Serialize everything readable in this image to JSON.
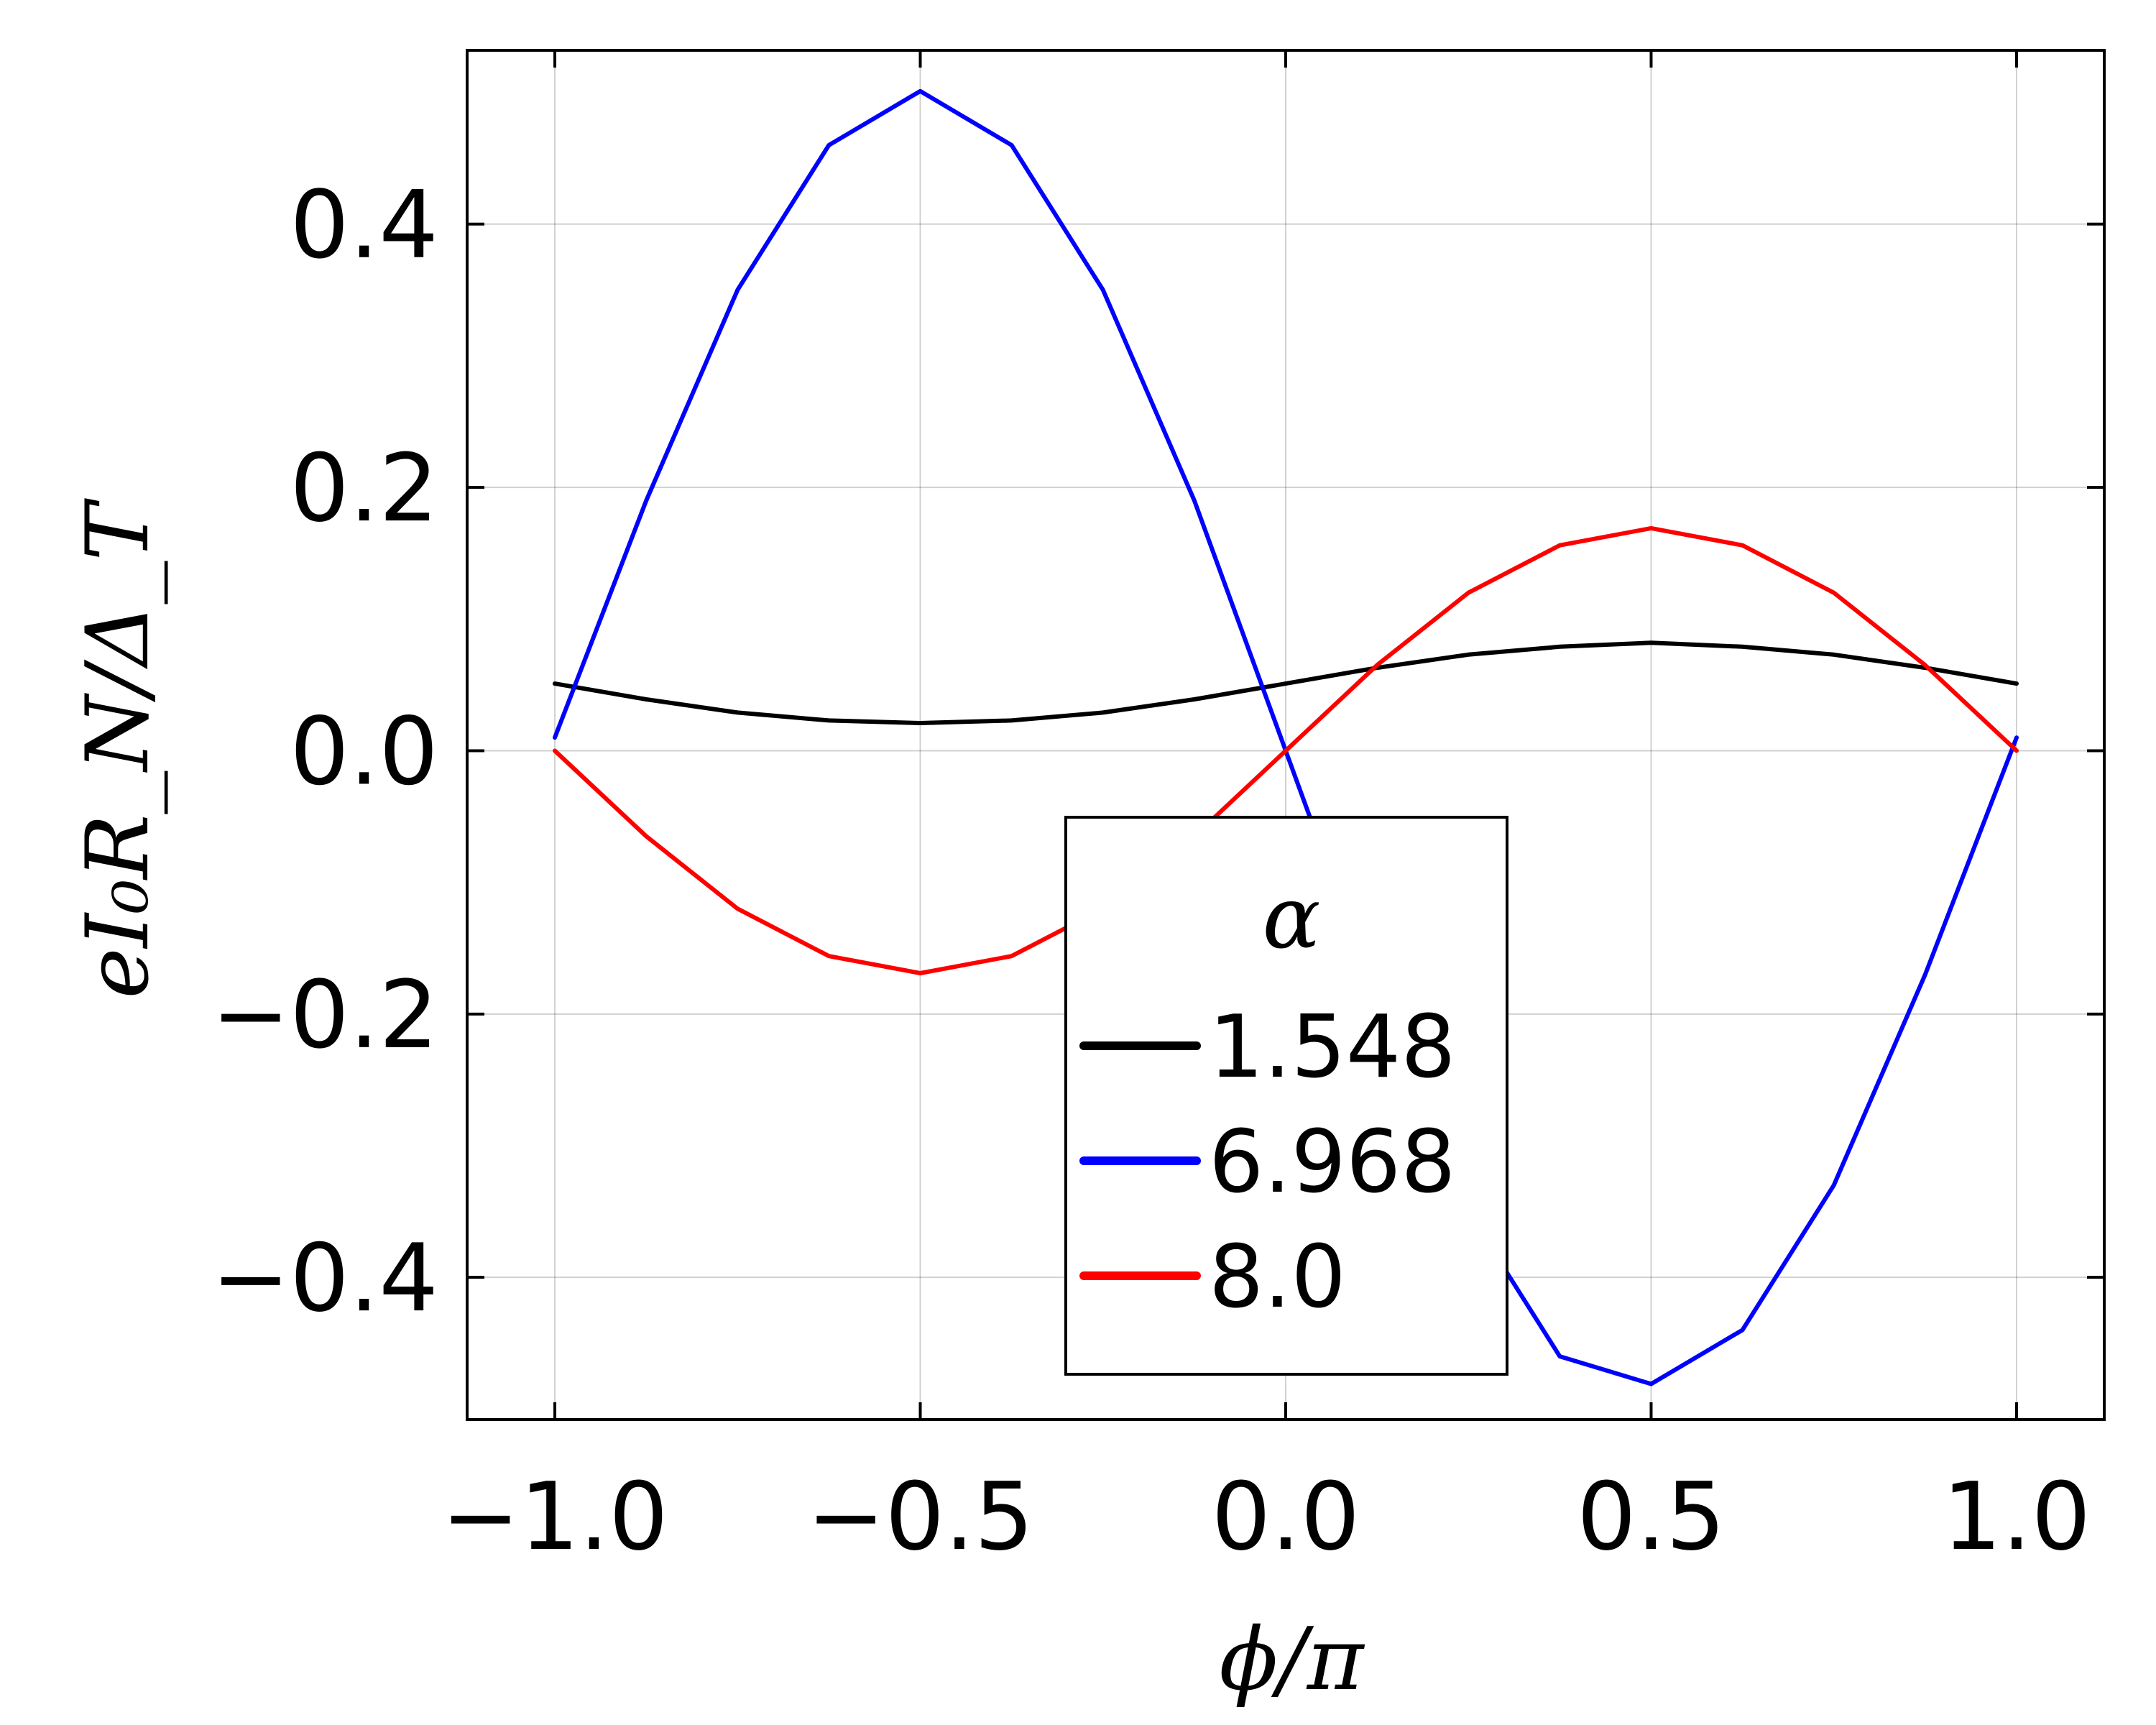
{
  "chart_data": {
    "type": "line",
    "xlabel": "ϕ/π",
    "ylabel": "eI₀R_N/Δ_T",
    "xlim": [
      -1.12,
      1.12
    ],
    "ylim": [
      -0.508,
      0.532
    ],
    "x_ticks": [
      -1.0,
      -0.5,
      0.0,
      0.5,
      1.0
    ],
    "x_tick_labels": [
      "−1.0",
      "−0.5",
      "0.0",
      "0.5",
      "1.0"
    ],
    "y_ticks": [
      -0.4,
      -0.2,
      0.0,
      0.2,
      0.4
    ],
    "y_tick_labels": [
      "−0.4",
      "−0.2",
      "0.0",
      "0.2",
      "0.4"
    ],
    "grid": true,
    "legend": {
      "title": "α",
      "placement": "bottom-center"
    },
    "series": [
      {
        "name": "1.548",
        "color": "#000000",
        "x": [
          -1.0,
          -0.875,
          -0.75,
          -0.625,
          -0.5,
          -0.375,
          -0.25,
          -0.125,
          0.0,
          0.125,
          0.25,
          0.375,
          0.5,
          0.625,
          0.75,
          0.875,
          1.0
        ],
        "y": [
          0.051,
          0.039,
          0.029,
          0.023,
          0.021,
          0.023,
          0.029,
          0.039,
          0.051,
          0.063,
          0.073,
          0.079,
          0.082,
          0.079,
          0.073,
          0.063,
          0.051
        ]
      },
      {
        "name": "6.968",
        "color": "#0000ff",
        "x": [
          -1.0,
          -0.875,
          -0.75,
          -0.625,
          -0.5,
          -0.375,
          -0.25,
          -0.125,
          0.0,
          0.125,
          0.25,
          0.375,
          0.5,
          0.625,
          0.75,
          0.875,
          1.0
        ],
        "y": [
          0.01,
          0.19,
          0.35,
          0.46,
          0.501,
          0.46,
          0.35,
          0.19,
          0.0,
          -0.19,
          -0.35,
          -0.46,
          -0.481,
          -0.44,
          -0.33,
          -0.17,
          0.01
        ]
      },
      {
        "name": "8.0",
        "color": "#ff0000",
        "x": [
          -1.0,
          -0.875,
          -0.75,
          -0.625,
          -0.5,
          -0.375,
          -0.25,
          -0.125,
          0.0,
          0.125,
          0.25,
          0.375,
          0.5,
          0.625,
          0.75,
          0.875,
          1.0
        ],
        "y": [
          0.0,
          -0.065,
          -0.12,
          -0.156,
          -0.169,
          -0.156,
          -0.12,
          -0.065,
          0.0,
          0.065,
          0.12,
          0.156,
          0.169,
          0.156,
          0.12,
          0.065,
          0.0
        ]
      }
    ]
  }
}
